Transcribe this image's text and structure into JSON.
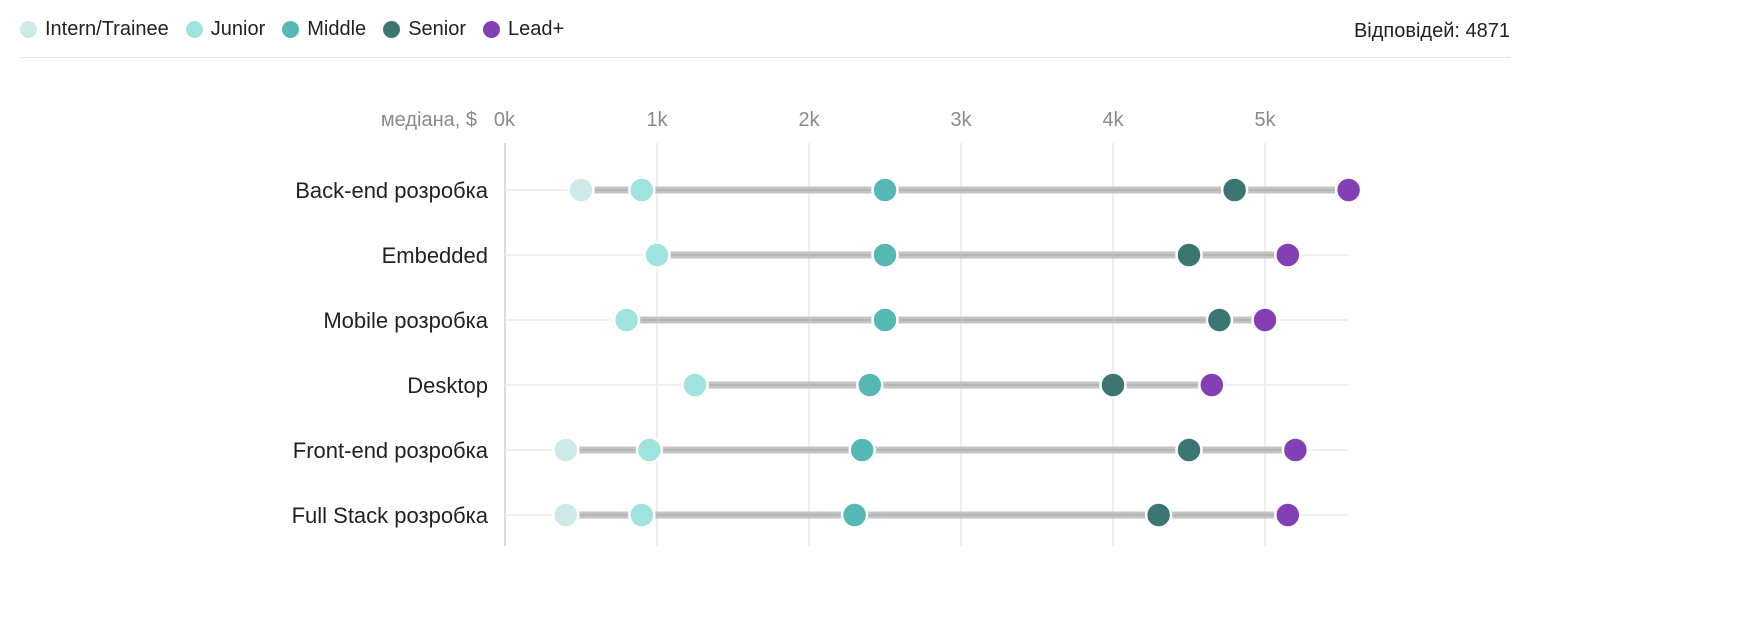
{
  "legend": [
    {
      "label": "Intern/Trainee",
      "color": "#cde9e8"
    },
    {
      "label": "Junior",
      "color": "#a0e3de"
    },
    {
      "label": "Middle",
      "color": "#56b8b4"
    },
    {
      "label": "Senior",
      "color": "#3b7672"
    },
    {
      "label": "Lead+",
      "color": "#8340b5"
    }
  ],
  "responses": "Відповідей: 4871",
  "chart_data": {
    "type": "dot-range",
    "xlabel": "медіана, $",
    "x_ticks": [
      "0k",
      "1k",
      "2k",
      "3k",
      "4k",
      "5k"
    ],
    "xlim": [
      0,
      5600
    ],
    "grid": true,
    "legend_position": "top-left",
    "levels": [
      "Intern/Trainee",
      "Junior",
      "Middle",
      "Senior",
      "Lead+"
    ],
    "categories": [
      "Back-end розробка",
      "Embedded",
      "Mobile розробка",
      "Desktop",
      "Front-end розробка",
      "Full Stack розробка"
    ],
    "series": [
      {
        "name": "Intern/Trainee",
        "values": [
          500,
          null,
          null,
          null,
          400,
          400
        ]
      },
      {
        "name": "Junior",
        "values": [
          900,
          1000,
          800,
          1250,
          950,
          900
        ]
      },
      {
        "name": "Middle",
        "values": [
          2500,
          2500,
          2500,
          2400,
          2350,
          2300
        ]
      },
      {
        "name": "Senior",
        "values": [
          4800,
          4500,
          4700,
          4000,
          4500,
          4300
        ]
      },
      {
        "name": "Lead+",
        "values": [
          5550,
          5150,
          5000,
          4650,
          5200,
          5150
        ]
      }
    ]
  }
}
